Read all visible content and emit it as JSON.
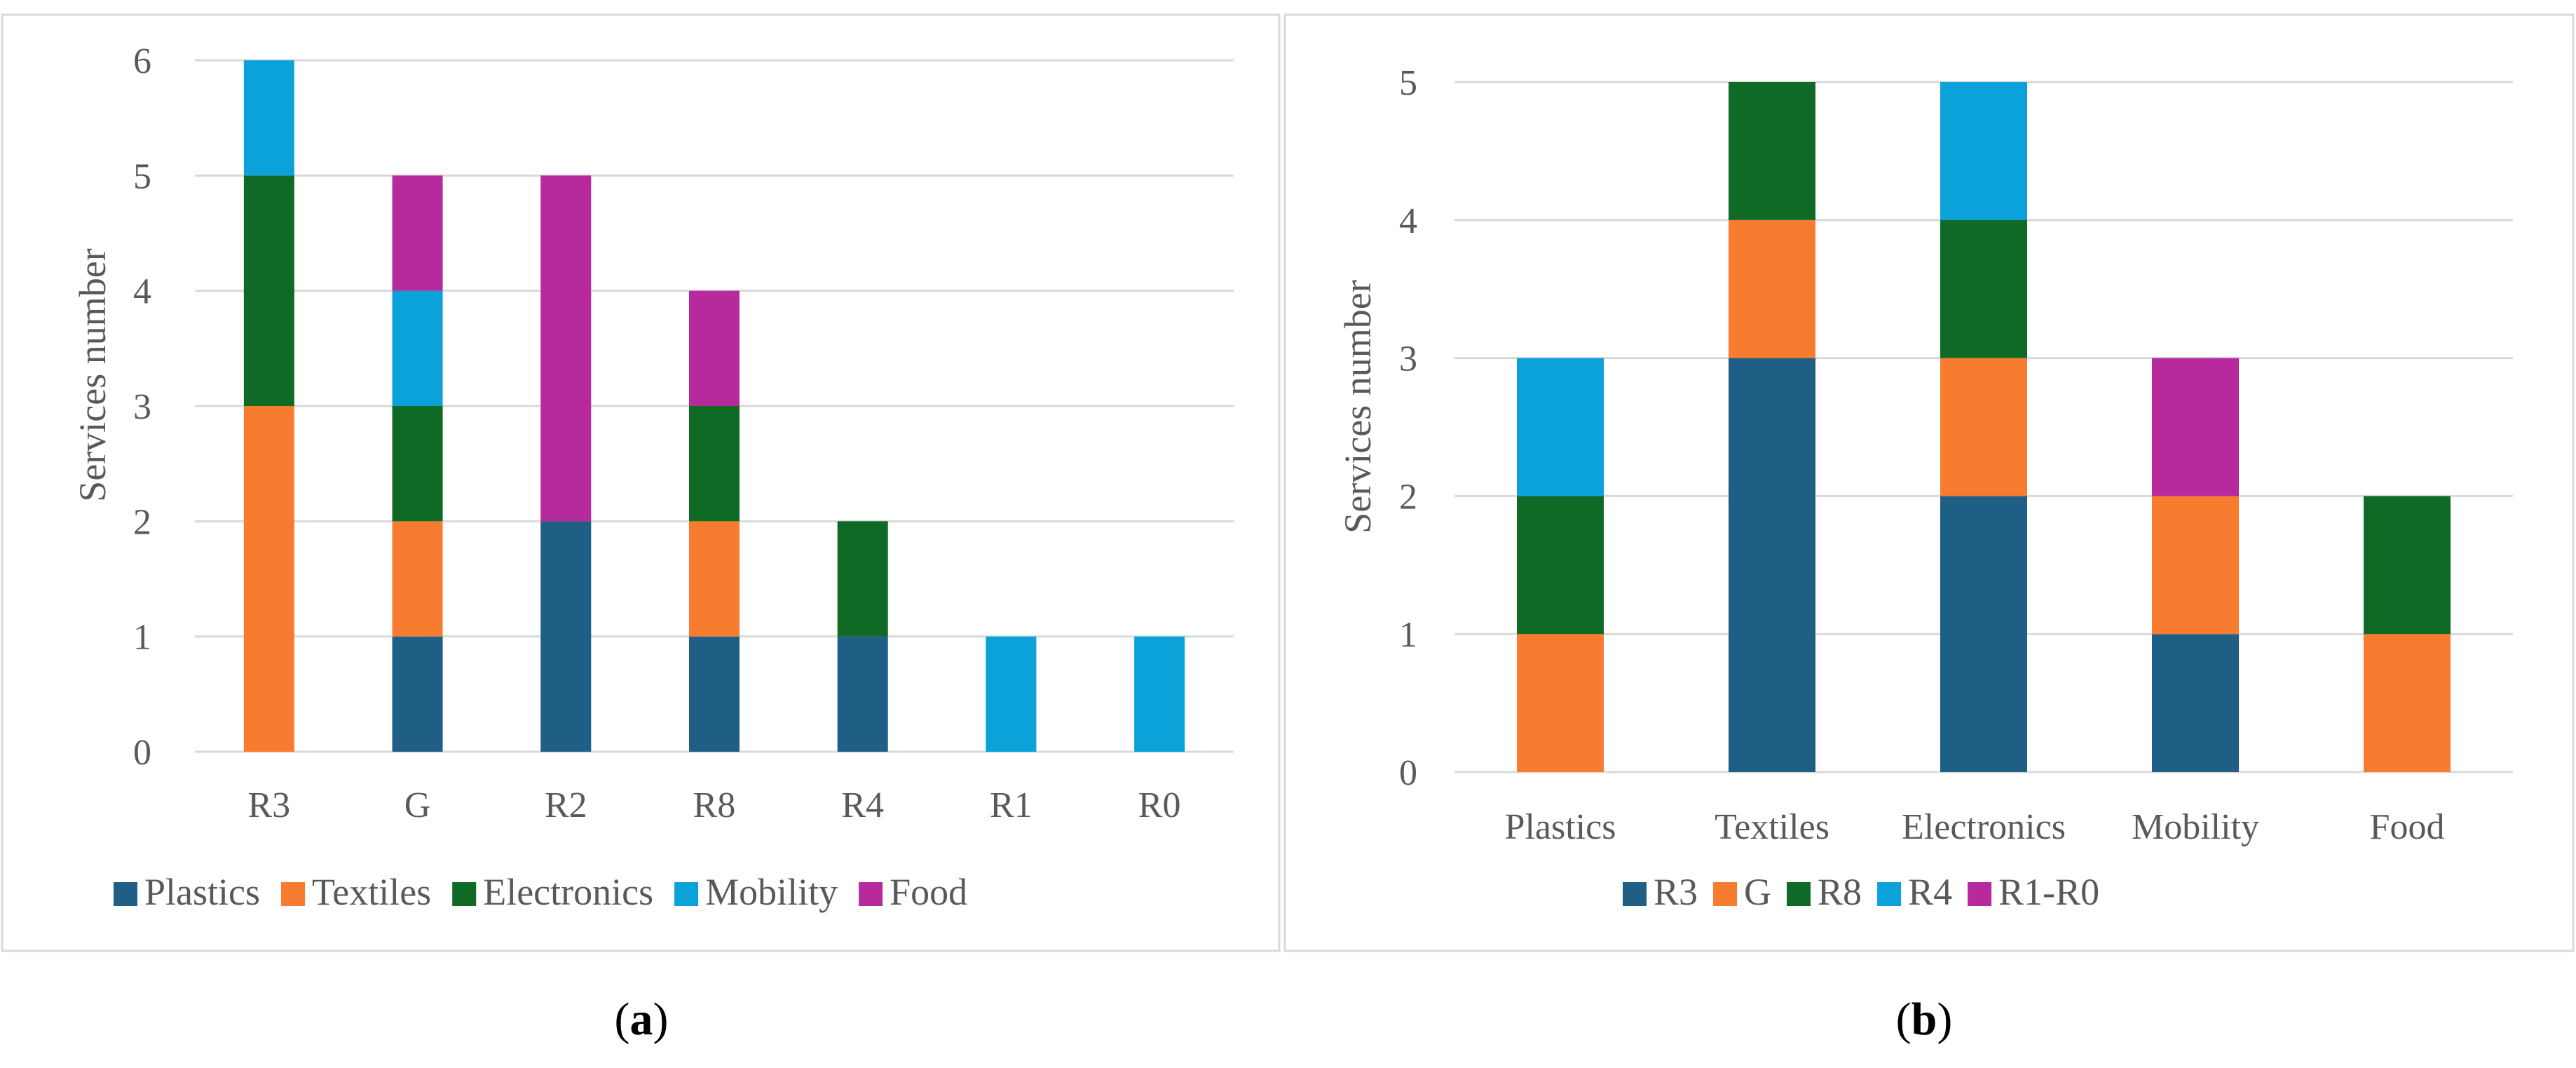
{
  "chart_data": [
    {
      "type": "bar",
      "stacked": true,
      "panel": "a",
      "categories": [
        "R3",
        "G",
        "R2",
        "R8",
        "R4",
        "R1",
        "R0"
      ],
      "series": [
        {
          "name": "Plastics",
          "color": "#1f5f86",
          "values": [
            0,
            1,
            2,
            1,
            1,
            0,
            0
          ]
        },
        {
          "name": "Textiles",
          "color": "#f77c30",
          "values": [
            3,
            1,
            0,
            1,
            0,
            0,
            0
          ]
        },
        {
          "name": "Electronics",
          "color": "#0e6a25",
          "values": [
            2,
            1,
            0,
            1,
            1,
            0,
            0
          ]
        },
        {
          "name": "Mobility",
          "color": "#0aa2d9",
          "values": [
            1,
            1,
            0,
            0,
            0,
            1,
            1
          ]
        },
        {
          "name": "Food",
          "color": "#b62a9e",
          "values": [
            0,
            1,
            3,
            1,
            0,
            0,
            0
          ]
        }
      ],
      "yticks": [
        "0",
        "1",
        "2",
        "3",
        "4",
        "5",
        "6"
      ],
      "ylim": [
        0,
        6
      ],
      "ylabel": "Services number",
      "xlabel": "",
      "grid": true,
      "legend": "bottom"
    },
    {
      "type": "bar",
      "stacked": true,
      "panel": "b",
      "categories": [
        "Plastics",
        "Textiles",
        "Electronics",
        "Mobility",
        "Food"
      ],
      "series": [
        {
          "name": "R3",
          "color": "#1f5f86",
          "values": [
            0,
            3,
            2,
            1,
            0
          ]
        },
        {
          "name": "G",
          "color": "#f77c30",
          "values": [
            1,
            1,
            1,
            1,
            1
          ]
        },
        {
          "name": "R8",
          "color": "#0e6a25",
          "values": [
            1,
            1,
            1,
            0,
            1
          ]
        },
        {
          "name": "R4",
          "color": "#0aa2d9",
          "values": [
            1,
            0,
            1,
            0,
            0
          ]
        },
        {
          "name": "R1-R0",
          "color": "#b62a9e",
          "values": [
            0,
            0,
            0,
            1,
            0
          ]
        }
      ],
      "yticks": [
        "0",
        "1",
        "2",
        "3",
        "4",
        "5"
      ],
      "ylim": [
        0,
        5
      ],
      "ylabel": "Services number",
      "xlabel": "",
      "grid": true,
      "legend": "bottom"
    }
  ],
  "captions": [
    {
      "open": "(",
      "letter": "a",
      "close": ")"
    },
    {
      "open": "(",
      "letter": "b",
      "close": ")"
    }
  ]
}
